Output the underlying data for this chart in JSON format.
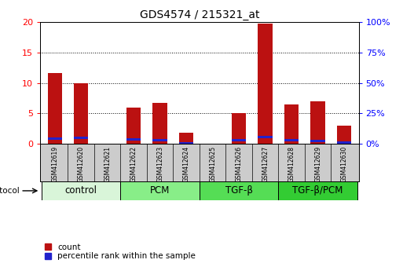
{
  "title": "GDS4574 / 215321_at",
  "samples": [
    "GSM412619",
    "GSM412620",
    "GSM412621",
    "GSM412622",
    "GSM412623",
    "GSM412624",
    "GSM412625",
    "GSM412626",
    "GSM412627",
    "GSM412628",
    "GSM412629",
    "GSM412630"
  ],
  "count_values": [
    11.7,
    10.0,
    0.0,
    6.0,
    6.7,
    1.8,
    0.0,
    5.1,
    19.8,
    6.5,
    7.0,
    3.0
  ],
  "percentile_values": [
    4.0,
    4.8,
    0.0,
    3.5,
    3.1,
    0.6,
    0.0,
    3.0,
    5.5,
    3.2,
    2.1,
    1.1
  ],
  "groups": [
    {
      "label": "control",
      "start": 0,
      "end": 3,
      "color": "#d9f5d9"
    },
    {
      "label": "PCM",
      "start": 3,
      "end": 6,
      "color": "#88ee88"
    },
    {
      "label": "TGF-β",
      "start": 6,
      "end": 9,
      "color": "#55dd55"
    },
    {
      "label": "TGF-β/PCM",
      "start": 9,
      "end": 12,
      "color": "#33cc33"
    }
  ],
  "ylim_left": [
    0,
    20
  ],
  "ylim_right": [
    0,
    100
  ],
  "yticks_left": [
    0,
    5,
    10,
    15,
    20
  ],
  "yticks_right": [
    0,
    25,
    50,
    75,
    100
  ],
  "bar_color_count": "#bb1111",
  "bar_color_pct": "#2222cc",
  "bar_width": 0.55,
  "blue_bar_height": 0.4,
  "background_color": "#ffffff",
  "cell_bg": "#cccccc",
  "title_fontsize": 10,
  "sample_fontsize": 5.5,
  "group_label_fontsize": 8.5,
  "axis_fontsize": 8,
  "legend_fontsize": 7.5
}
